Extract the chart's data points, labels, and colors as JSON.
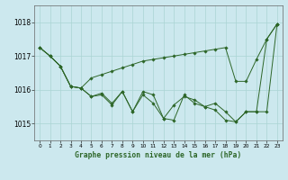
{
  "title": "Graphe pression niveau de la mer (hPa)",
  "bg_color": "#cce8ee",
  "grid_color": "#aad4d4",
  "line_color": "#2d6628",
  "ylim": [
    1014.5,
    1018.5
  ],
  "yticks": [
    1015,
    1016,
    1017,
    1018
  ],
  "line1": [
    1017.25,
    1017.0,
    1016.7,
    1016.1,
    1016.05,
    1016.35,
    1016.45,
    1016.55,
    1016.65,
    1016.75,
    1016.85,
    1016.9,
    1016.95,
    1017.0,
    1017.05,
    1017.1,
    1017.15,
    1017.2,
    1017.25,
    1016.25,
    1016.25,
    1016.9,
    1017.5,
    1017.95
  ],
  "line2": [
    1017.25,
    1017.0,
    1016.7,
    1016.1,
    1016.05,
    1015.8,
    1015.9,
    1015.6,
    1015.95,
    1015.35,
    1015.95,
    1015.85,
    1015.15,
    1015.55,
    1015.8,
    1015.7,
    1015.5,
    1015.4,
    1015.1,
    1015.05,
    1015.35,
    1015.35,
    1017.5,
    1017.95
  ],
  "line3": [
    1017.25,
    1017.0,
    1016.7,
    1016.1,
    1016.05,
    1015.8,
    1015.85,
    1015.55,
    1015.95,
    1015.35,
    1015.85,
    1015.6,
    1015.15,
    1015.1,
    1015.85,
    1015.6,
    1015.5,
    1015.6,
    1015.35,
    1015.05,
    1015.35,
    1015.35,
    1015.35,
    1017.95
  ]
}
